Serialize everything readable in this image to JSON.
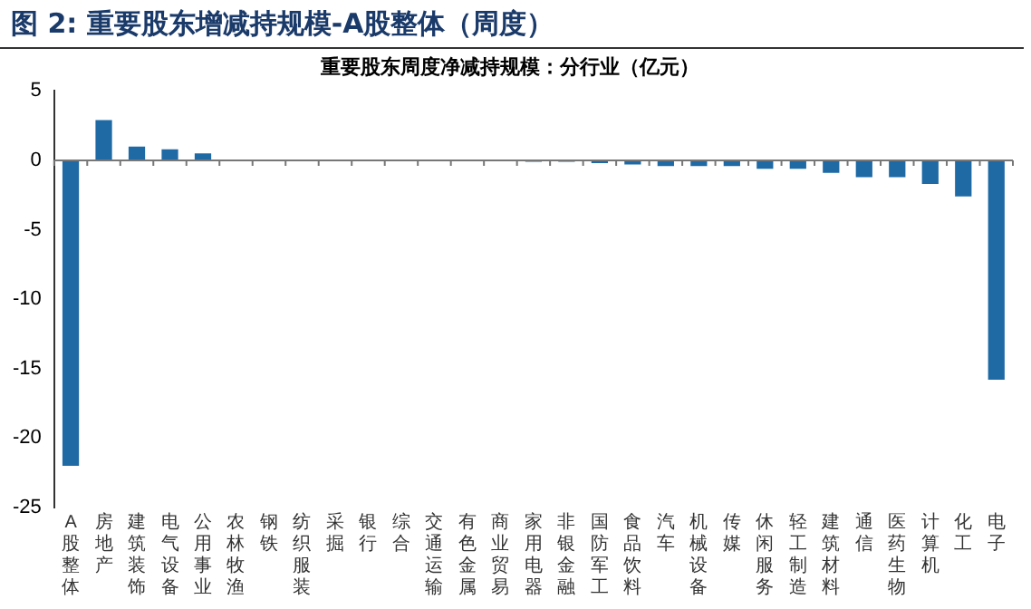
{
  "chart_data": {
    "type": "bar",
    "title": "图 2:  重要股东增减持规模-A股整体（周度）",
    "subtitle": "重要股东周度净减持规模：分行业（亿元）",
    "categories": [
      "A股整体",
      "房地产",
      "建筑装饰",
      "电气设备",
      "公用事业",
      "农林牧渔",
      "钢铁",
      "纺织服装",
      "采掘",
      "银行",
      "综合",
      "交通运输",
      "有色金属",
      "商业贸易",
      "家用电器",
      "非银金融",
      "国防军工",
      "食品饮料",
      "汽车",
      "机械设备",
      "传媒",
      "休闲服务",
      "轻工制造",
      "建筑材料",
      "通信",
      "医药生物",
      "计算机",
      "化工",
      "电子"
    ],
    "values": [
      -22,
      2.9,
      1,
      0.8,
      0.5,
      0,
      0,
      0,
      0,
      0,
      0,
      0,
      0,
      0,
      -0.1,
      -0.1,
      -0.2,
      -0.3,
      -0.4,
      -0.4,
      -0.4,
      -0.6,
      -0.6,
      -0.9,
      -1.2,
      -1.2,
      -1.7,
      -2.6,
      -15.8
    ],
    "color": "#1f6aa5",
    "ylim": [
      -25,
      5
    ],
    "yticks": [
      5,
      0,
      -5,
      -10,
      -15,
      -20,
      -25
    ],
    "legend": false
  }
}
